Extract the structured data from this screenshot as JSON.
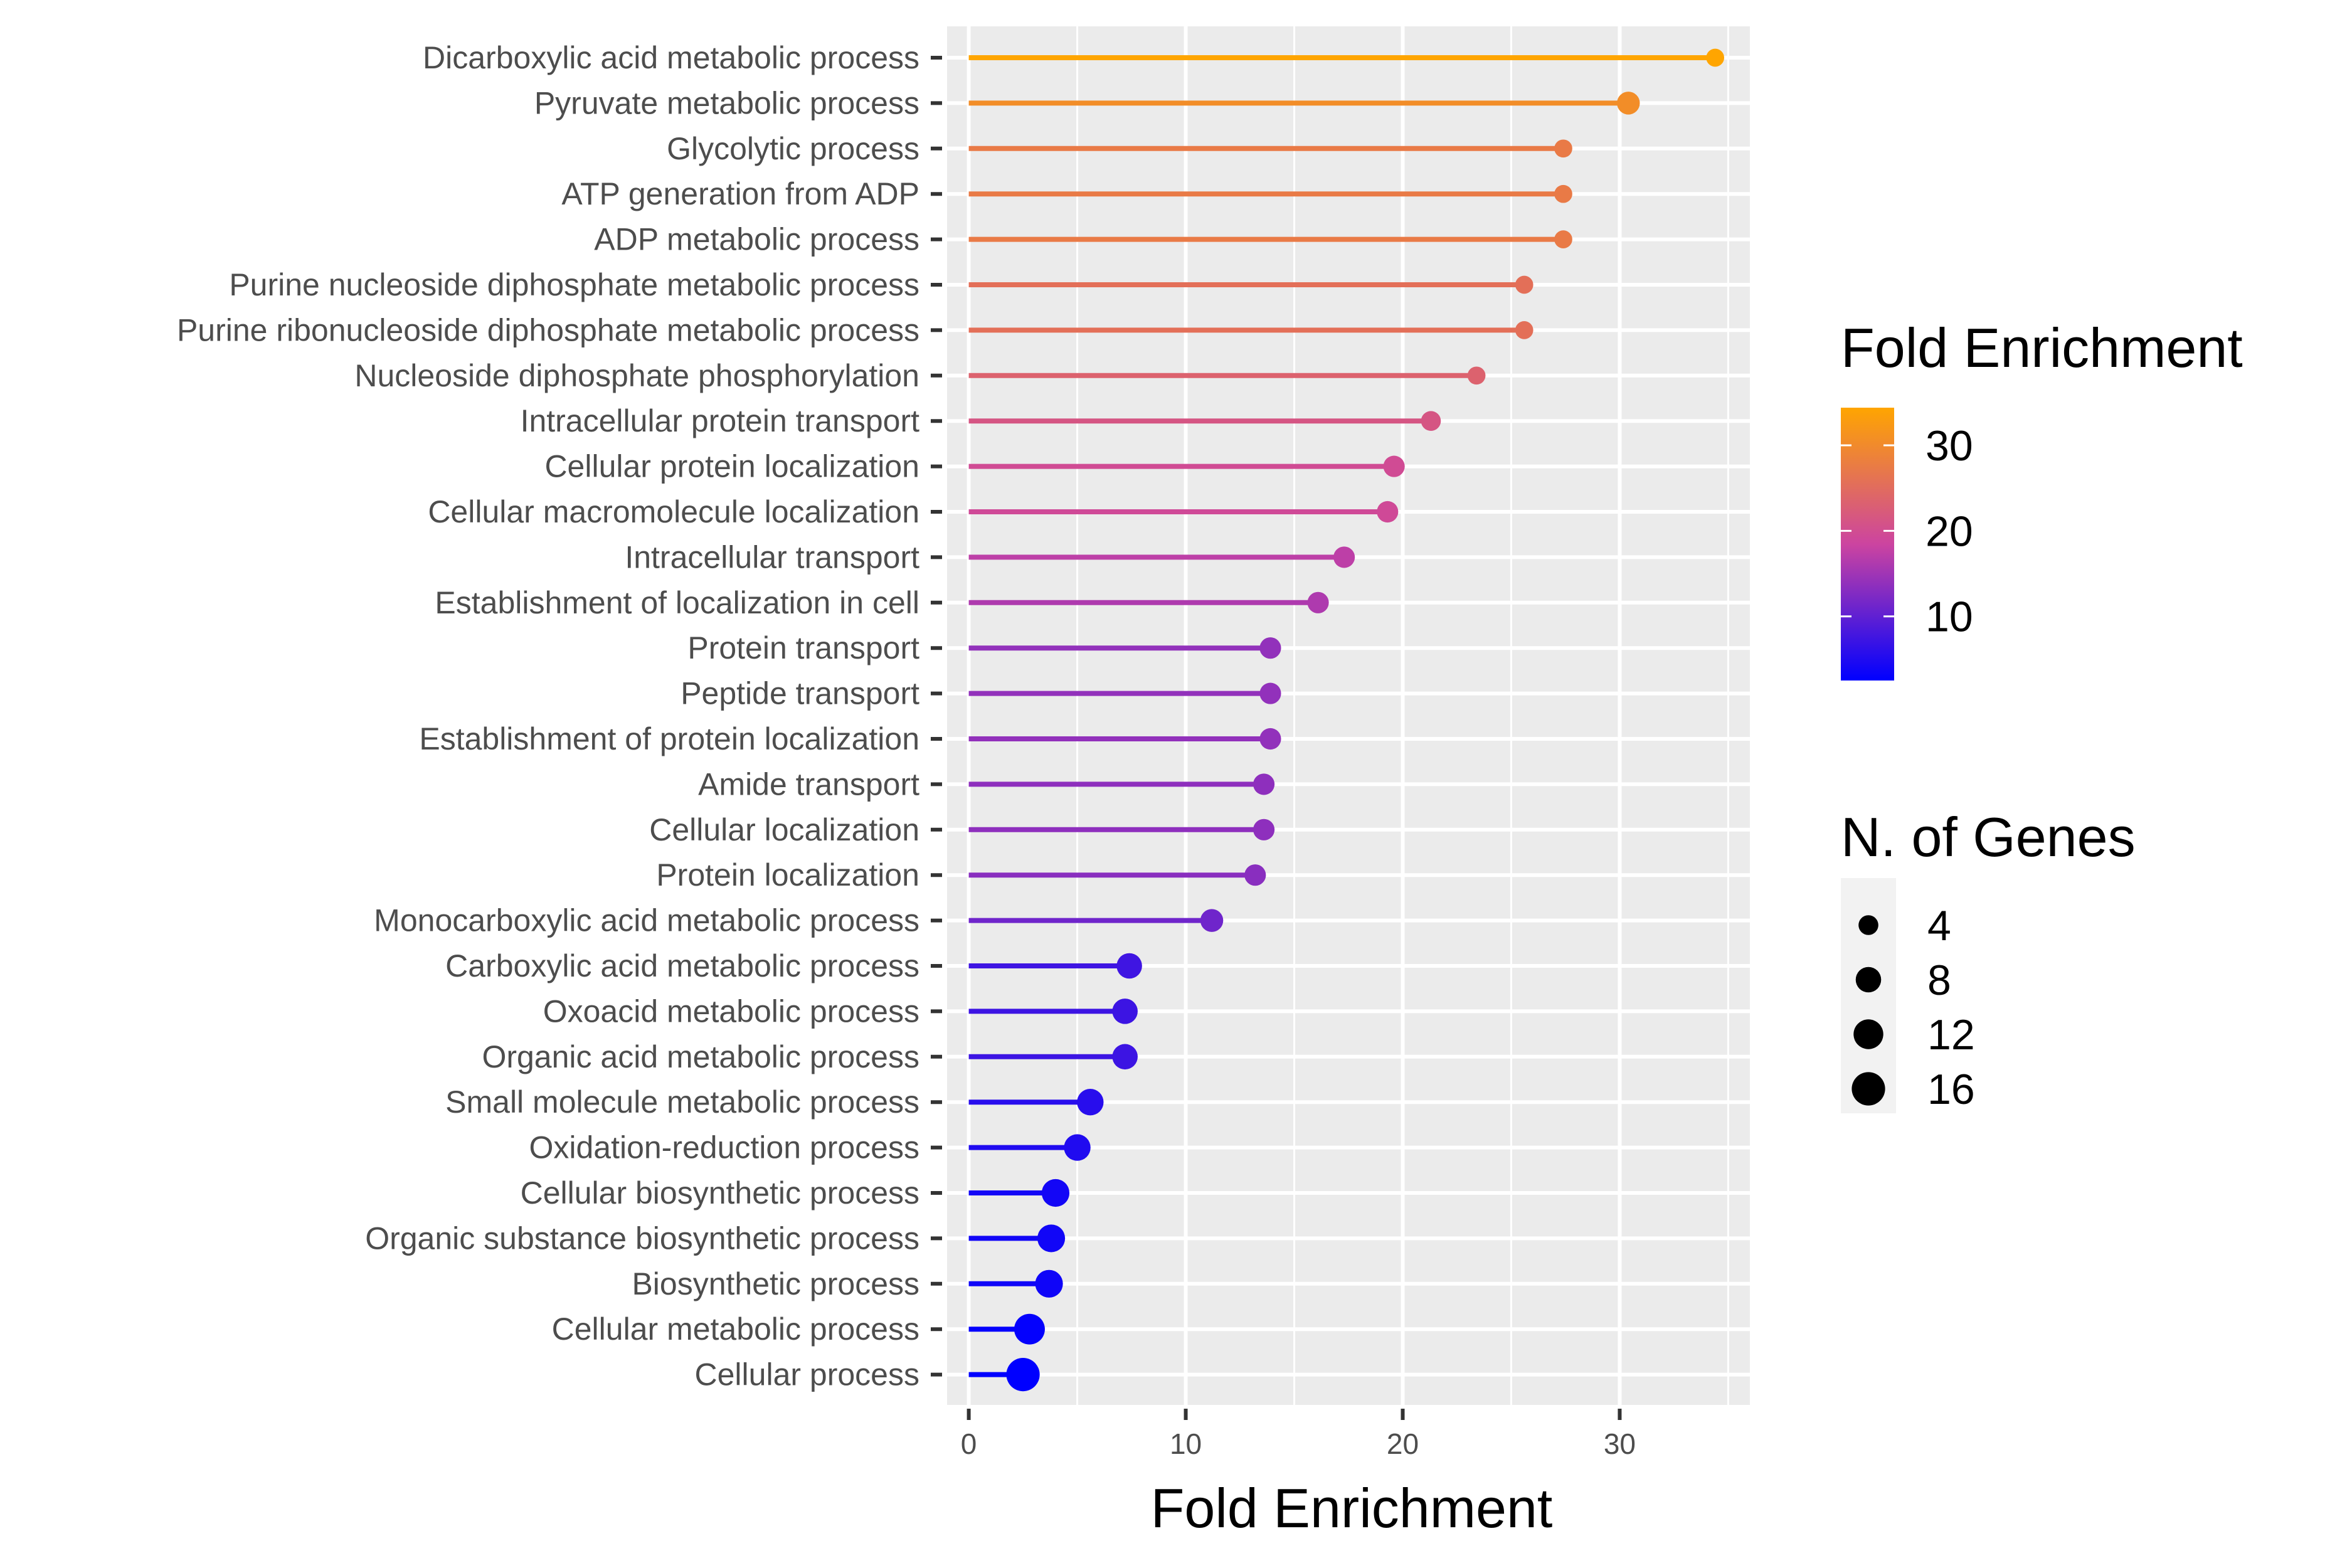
{
  "chart_data": {
    "type": "lollipop",
    "xlabel": "Fold Enrichment",
    "ylabel": "",
    "xlim": [
      -1,
      36
    ],
    "x_ticks": [
      "0",
      "10",
      "20",
      "30"
    ],
    "grid": true,
    "categories": [
      "Dicarboxylic acid metabolic process",
      "Pyruvate metabolic process",
      "Glycolytic process",
      "ATP generation from ADP",
      "ADP metabolic process",
      "Purine nucleoside diphosphate metabolic process",
      "Purine ribonucleoside diphosphate metabolic process",
      "Nucleoside diphosphate phosphorylation",
      "Intracellular protein transport",
      "Cellular protein localization",
      "Cellular macromolecule localization",
      "Intracellular transport",
      "Establishment of localization in cell",
      "Protein transport",
      "Peptide transport",
      "Establishment of protein localization",
      "Amide transport",
      "Cellular localization",
      "Protein localization",
      "Monocarboxylic acid metabolic process",
      "Carboxylic acid metabolic process",
      "Oxoacid metabolic process",
      "Organic acid metabolic process",
      "Small molecule metabolic process",
      "Oxidation-reduction process",
      "Cellular biosynthetic process",
      "Organic substance biosynthetic process",
      "Biosynthetic process",
      "Cellular metabolic process",
      "Cellular process"
    ],
    "fold_enrichment": [
      34.4,
      30.4,
      27.4,
      27.4,
      27.4,
      25.6,
      25.6,
      23.4,
      21.3,
      19.6,
      19.3,
      17.3,
      16.1,
      13.9,
      13.9,
      13.9,
      13.6,
      13.6,
      13.2,
      11.2,
      7.4,
      7.2,
      7.2,
      5.6,
      5.0,
      4.0,
      3.8,
      3.7,
      2.8,
      2.5
    ],
    "n_genes": [
      3,
      6,
      3,
      3,
      3,
      3,
      3,
      3,
      4,
      5,
      5,
      5,
      5,
      5,
      5,
      5,
      5,
      5,
      5,
      6,
      8,
      8,
      8,
      9,
      9,
      10,
      10,
      10,
      13,
      16
    ],
    "legend_color": {
      "title": "Fold Enrichment",
      "ticks": [
        "30",
        "20",
        "10"
      ],
      "tick_values": [
        30,
        20,
        10
      ],
      "range": [
        2.5,
        34.4
      ],
      "low_color": "#0000ff",
      "mid_color": "#cc44a0",
      "high_color": "#ffa500",
      "placement": "right"
    },
    "legend_size": {
      "title": "N. of Genes",
      "labels": [
        "4",
        "8",
        "12",
        "16"
      ],
      "values": [
        4,
        8,
        12,
        16
      ],
      "placement": "right"
    }
  }
}
